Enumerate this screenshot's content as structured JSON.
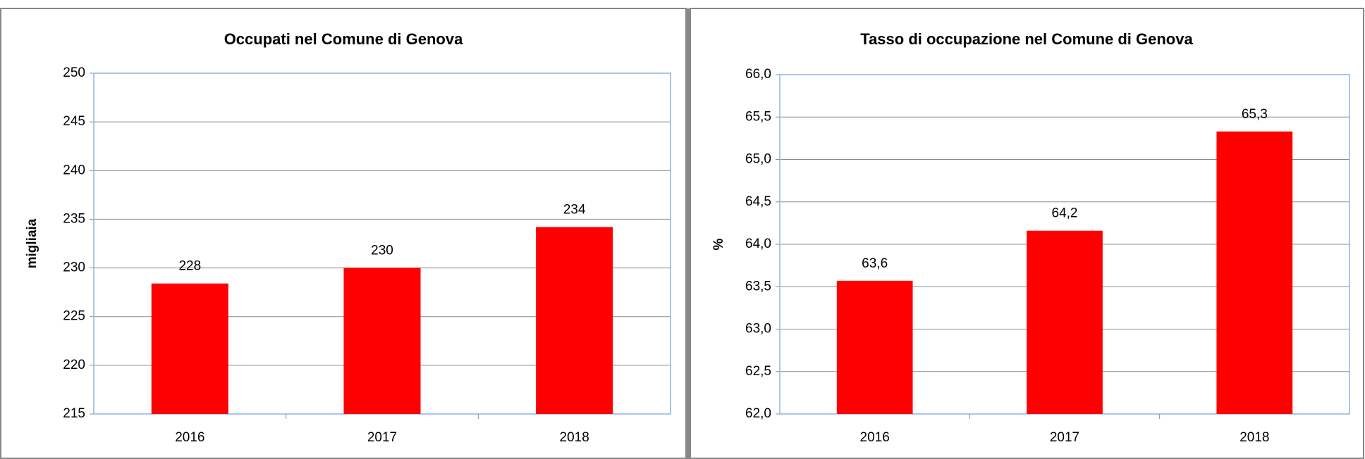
{
  "chart_data": [
    {
      "type": "bar",
      "title": "Occupati nel Comune di Genova",
      "y_label": "migliaia",
      "categories": [
        "2016",
        "2017",
        "2018"
      ],
      "values": [
        228.4,
        230.0,
        234.2
      ],
      "value_labels": [
        "228",
        "230",
        "234"
      ],
      "color": "#ff0000",
      "ylim": [
        215,
        250
      ],
      "yticks": [
        215,
        220,
        225,
        230,
        235,
        240,
        245,
        250
      ],
      "grid": true
    },
    {
      "type": "bar",
      "title": "Tasso di occupazione nel Comune di Genova",
      "y_label": "%",
      "categories": [
        "2016",
        "2017",
        "2018"
      ],
      "values": [
        63.57,
        64.16,
        65.33
      ],
      "value_labels": [
        "63,6",
        "64,2",
        "65,3"
      ],
      "color": "#ff0000",
      "ylim": [
        62,
        66
      ],
      "yticks": [
        {
          "value": 62,
          "label": "62,0"
        },
        {
          "value": 62.5,
          "label": "62,5"
        },
        {
          "value": 63,
          "label": "63,0"
        },
        {
          "value": 63.5,
          "label": "63,5"
        },
        {
          "value": 64,
          "label": "64,0"
        },
        {
          "value": 64.5,
          "label": "64,5"
        },
        {
          "value": 65,
          "label": "65,0"
        },
        {
          "value": 65.5,
          "label": "65,5"
        },
        {
          "value": 66,
          "label": "66,0"
        }
      ],
      "grid": true
    }
  ]
}
